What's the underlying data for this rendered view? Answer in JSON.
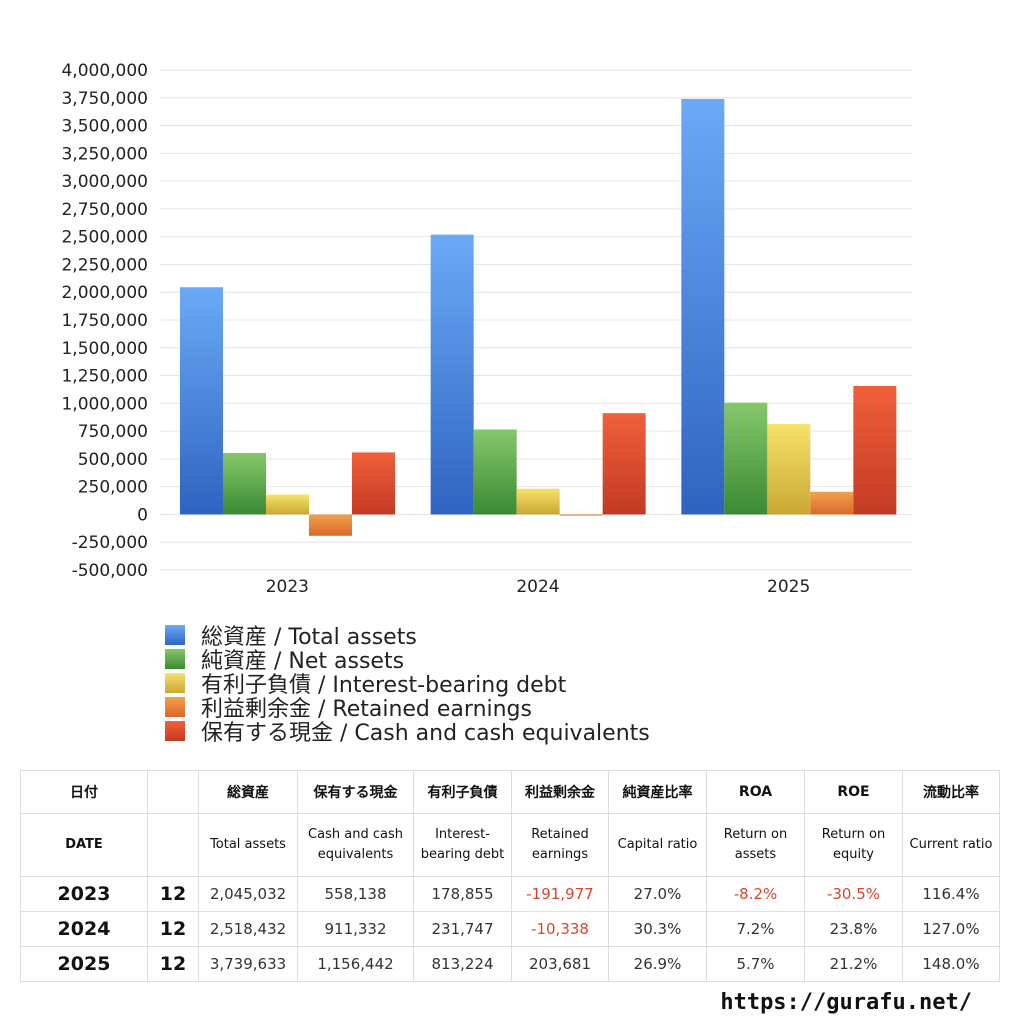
{
  "chart_data": {
    "type": "bar",
    "categories": [
      "2023",
      "2024",
      "2025"
    ],
    "ylim": [
      -500000,
      4000000
    ],
    "yticks": [
      4000000,
      3750000,
      3500000,
      3250000,
      3000000,
      2750000,
      2500000,
      2250000,
      2000000,
      1750000,
      1500000,
      1250000,
      1000000,
      750000,
      500000,
      250000,
      0,
      -250000,
      -500000
    ],
    "ytick_labels": [
      "4,000,000",
      "3,750,000",
      "3,500,000",
      "3,250,000",
      "3,000,000",
      "2,750,000",
      "2,500,000",
      "2,250,000",
      "2,000,000",
      "1,750,000",
      "1,500,000",
      "1,250,000",
      "1,000,000",
      "750,000",
      "500,000",
      "250,000",
      "0",
      "-250,000",
      "-500,000"
    ],
    "grid": true,
    "legend_position": "bottom",
    "series": [
      {
        "name": "総資産 / Total assets",
        "values": [
          2045032,
          2518432,
          3739633
        ],
        "color_top": "#6aaaf6",
        "color_bottom": "#2f63c0"
      },
      {
        "name": "純資産 / Net assets",
        "values": [
          553000,
          765000,
          1006000
        ],
        "color_top": "#85c86a",
        "color_bottom": "#3b8a35"
      },
      {
        "name": "有利子負債 / Interest-bearing debt",
        "values": [
          178855,
          231747,
          813224
        ],
        "color_top": "#f6e26a",
        "color_bottom": "#c9a834"
      },
      {
        "name": "利益剰余金 / Retained earnings",
        "values": [
          -191977,
          -10338,
          203681
        ],
        "color_top": "#f3a04e",
        "color_bottom": "#d9692a"
      },
      {
        "name": "保有する現金 /  Cash and cash equivalents",
        "values": [
          558138,
          911332,
          1156442
        ],
        "color_top": "#f0603a",
        "color_bottom": "#c33a24"
      }
    ]
  },
  "table": {
    "headers_jp": [
      "日付",
      "",
      "総資産",
      "保有する現金",
      "有利子負債",
      "利益剰余金",
      "純資産比率",
      "ROA",
      "ROE",
      "流動比率"
    ],
    "headers_en": [
      "DATE",
      "",
      "Total assets",
      "Cash and cash equivalents",
      "Interest-bearing debt",
      "Retained earnings",
      "Capital ratio",
      "Return on assets",
      "Return on equity",
      "Current ratio"
    ],
    "rows": [
      {
        "cells": [
          "2023",
          "12",
          "2,045,032",
          "558,138",
          "178,855",
          "-191,977",
          "27.0%",
          "-8.2%",
          "-30.5%",
          "116.4%"
        ],
        "neg": [
          5,
          7,
          8
        ]
      },
      {
        "cells": [
          "2024",
          "12",
          "2,518,432",
          "911,332",
          "231,747",
          "-10,338",
          "30.3%",
          "7.2%",
          "23.8%",
          "127.0%"
        ],
        "neg": [
          5
        ]
      },
      {
        "cells": [
          "2025",
          "12",
          "3,739,633",
          "1,156,442",
          "813,224",
          "203,681",
          "26.9%",
          "5.7%",
          "21.2%",
          "148.0%"
        ],
        "neg": []
      }
    ]
  },
  "footer": {
    "url": "https://gurafu.net/"
  }
}
